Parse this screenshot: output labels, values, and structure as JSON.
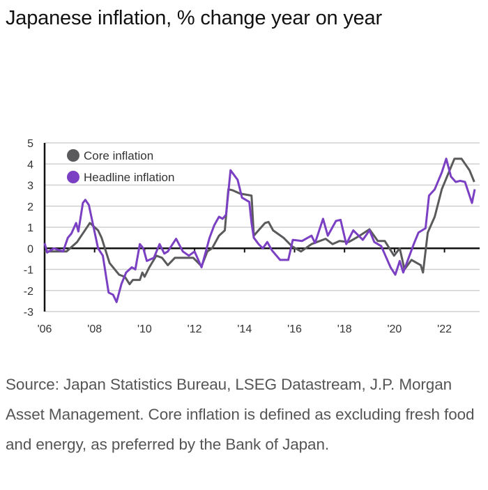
{
  "title": "Japanese inflation, % change year on year",
  "source": "Source: Japan Statistics Bureau, LSEG Datastream, J.P. Morgan Asset Management. Core inflation is defined as excluding fresh food and energy, as preferred by the Bank of Japan.",
  "chart_data": {
    "type": "line",
    "title": "Japanese inflation, % change year on year",
    "xlabel": "",
    "ylabel": "",
    "xlim": [
      2006,
      2023.5
    ],
    "ylim": [
      -3,
      5
    ],
    "y_ticks": [
      "5",
      "4",
      "3",
      "2",
      "1",
      "0",
      "-1",
      "-2",
      "-3"
    ],
    "x_ticks": [
      "'06",
      "'08",
      "'10",
      "'12",
      "'14",
      "'16",
      "'18",
      "'20",
      "'22"
    ],
    "grid": true,
    "legend": "top-left",
    "series": [
      {
        "name": "Core inflation",
        "color": "#5a5a5c",
        "x": [
          2006.0,
          2006.47,
          2006.88,
          2007.3,
          2007.81,
          2008.14,
          2008.28,
          2008.6,
          2008.98,
          2009.21,
          2009.4,
          2009.53,
          2009.81,
          2009.91,
          2010.0,
          2010.19,
          2010.47,
          2010.7,
          2010.93,
          2011.21,
          2011.49,
          2011.95,
          2012.28,
          2012.51,
          2012.7,
          2012.98,
          2013.21,
          2013.35,
          2013.53,
          2013.81,
          2014.28,
          2014.37,
          2014.82,
          2014.96,
          2015.14,
          2015.56,
          2015.89,
          2016.26,
          2016.68,
          2017.24,
          2017.52,
          2017.8,
          2018.17,
          2018.54,
          2019.0,
          2019.33,
          2019.61,
          2019.98,
          2020.21,
          2020.4,
          2020.68,
          2021.05,
          2021.14,
          2021.33,
          2021.61,
          2021.89,
          2022.17,
          2022.4,
          2022.68,
          2023.0,
          2023.19
        ],
        "y": [
          -0.15,
          -0.15,
          -0.15,
          0.3,
          1.2,
          0.85,
          0.5,
          -0.7,
          -1.25,
          -1.35,
          -1.7,
          -1.5,
          -1.5,
          -1.15,
          -1.35,
          -0.9,
          -0.35,
          -0.45,
          -0.8,
          -0.45,
          -0.45,
          -0.45,
          -0.85,
          -0.15,
          0,
          0.6,
          0.85,
          2.8,
          2.75,
          2.6,
          2.5,
          0.6,
          1.2,
          1.25,
          0.85,
          0.5,
          0.1,
          -0.15,
          0.2,
          0.45,
          0.2,
          0.35,
          0.3,
          0.55,
          0.9,
          0.35,
          0.35,
          -0.35,
          0,
          -1.0,
          -0.55,
          -0.8,
          -1.15,
          0.75,
          1.5,
          2.8,
          3.6,
          4.25,
          4.25,
          3.7,
          3.15
        ]
      },
      {
        "name": "Headline inflation",
        "color": "#7a3fc2",
        "x": [
          2006.0,
          2006.1,
          2006.37,
          2006.74,
          2006.93,
          2007.07,
          2007.26,
          2007.35,
          2007.53,
          2007.63,
          2007.77,
          2007.95,
          2008.14,
          2008.33,
          2008.56,
          2008.74,
          2008.88,
          2009.07,
          2009.26,
          2009.49,
          2009.63,
          2009.81,
          2009.95,
          2010.09,
          2010.37,
          2010.6,
          2010.79,
          2010.93,
          2011.26,
          2011.53,
          2011.77,
          2012.0,
          2012.28,
          2012.6,
          2012.79,
          2012.98,
          2013.12,
          2013.26,
          2013.44,
          2013.72,
          2013.9,
          2014.19,
          2014.28,
          2014.37,
          2014.56,
          2014.73,
          2014.91,
          2015.1,
          2015.42,
          2015.75,
          2015.93,
          2016.3,
          2016.68,
          2016.82,
          2017.14,
          2017.33,
          2017.66,
          2017.84,
          2018.07,
          2018.35,
          2018.73,
          2019.0,
          2019.19,
          2019.47,
          2019.84,
          2020.03,
          2020.21,
          2020.35,
          2020.77,
          2020.96,
          2021.24,
          2021.38,
          2021.61,
          2021.89,
          2022.07,
          2022.26,
          2022.45,
          2022.63,
          2022.82,
          2023.1,
          2023.21
        ],
        "y": [
          0.25,
          -0.2,
          0,
          -0.15,
          0.5,
          0.7,
          1.2,
          0.8,
          2.15,
          2.3,
          2.05,
          1.05,
          0,
          -0.35,
          -2.1,
          -2.2,
          -2.55,
          -1.7,
          -1.15,
          -0.9,
          -1.0,
          0.2,
          0,
          -0.6,
          -0.45,
          0.2,
          -0.25,
          -0.15,
          0.45,
          -0.15,
          -0.35,
          -0.15,
          -0.9,
          0.5,
          1.1,
          1.5,
          1.4,
          1.6,
          3.7,
          3.25,
          2.4,
          2.2,
          1.2,
          0.5,
          0.2,
          0,
          0.3,
          -0.1,
          -0.55,
          -0.55,
          0.4,
          0.35,
          0.6,
          0.25,
          1.4,
          0.6,
          1.3,
          1.35,
          0.2,
          0.85,
          0.4,
          0.85,
          0.3,
          0.1,
          -0.9,
          -1.25,
          -0.6,
          -1.15,
          0.2,
          0.75,
          0.95,
          2.5,
          2.8,
          3.6,
          4.25,
          3.4,
          3.15,
          3.2,
          3.15,
          2.15,
          2.8
        ]
      }
    ]
  }
}
